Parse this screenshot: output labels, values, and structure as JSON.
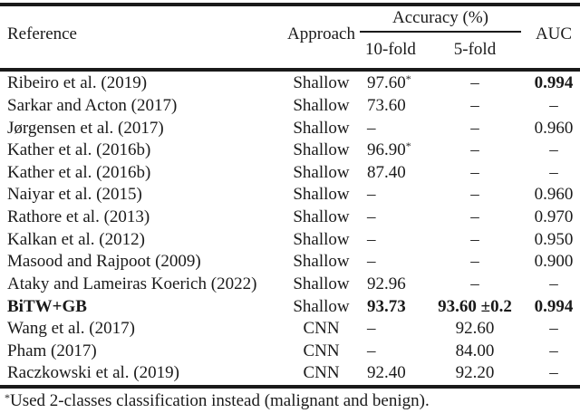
{
  "table": {
    "headers": {
      "reference": "Reference",
      "approach": "Approach",
      "accuracy_group": "Accuracy (%)",
      "fold10": "10-fold",
      "fold5": "5-fold",
      "auc": "AUC"
    },
    "rows": [
      {
        "reference": "Ribeiro et al. (2019)",
        "approach": "Shallow",
        "fold10": "97.60",
        "fold10_mark": "*",
        "fold5": "–",
        "auc": "0.994"
      },
      {
        "reference": "Sarkar and Acton (2017)",
        "approach": "Shallow",
        "fold10": "73.60",
        "fold5": "–",
        "auc": "–"
      },
      {
        "reference": "Jørgensen et al. (2017)",
        "approach": "Shallow",
        "fold10": "–",
        "fold5": "–",
        "auc": "0.960"
      },
      {
        "reference": "Kather et al. (2016b)",
        "approach": "Shallow",
        "fold10": "96.90",
        "fold10_mark": "*",
        "fold5": "–",
        "auc": "–"
      },
      {
        "reference": "Kather et al. (2016b)",
        "approach": "Shallow",
        "fold10": "87.40",
        "fold5": "–",
        "auc": "–"
      },
      {
        "reference": "Naiyar et al. (2015)",
        "approach": "Shallow",
        "fold10": "–",
        "fold5": "–",
        "auc": "0.960"
      },
      {
        "reference": "Rathore et al. (2013)",
        "approach": "Shallow",
        "fold10": "–",
        "fold5": "–",
        "auc": "0.970"
      },
      {
        "reference": "Kalkan et al. (2012)",
        "approach": "Shallow",
        "fold10": "–",
        "fold5": "–",
        "auc": "0.950"
      },
      {
        "reference": "Masood and Rajpoot (2009)",
        "approach": "Shallow",
        "fold10": "–",
        "fold5": "–",
        "auc": "0.900"
      },
      {
        "reference": "Ataky and Lameiras Koerich (2022)",
        "approach": "Shallow",
        "fold10": "92.96",
        "fold5": "–",
        "auc": "–"
      },
      {
        "reference": "BiTW+GB",
        "approach": "Shallow",
        "fold10": "93.73",
        "fold5": "93.60 ±0.2",
        "auc": "0.994"
      },
      {
        "reference": "Wang et al. (2017)",
        "approach": "CNN",
        "fold10": "–",
        "fold5": "92.60",
        "auc": "–"
      },
      {
        "reference": "Pham (2017)",
        "approach": "CNN",
        "fold10": "–",
        "fold5": "84.00",
        "auc": "–"
      },
      {
        "reference": "Raczkowski et al. (2019)",
        "approach": "CNN",
        "fold10": "92.40",
        "fold5": "92.20",
        "auc": "–"
      }
    ],
    "footnote": {
      "marker": "*",
      "text": "Used 2-classes classification instead (malignant and benign)."
    }
  }
}
